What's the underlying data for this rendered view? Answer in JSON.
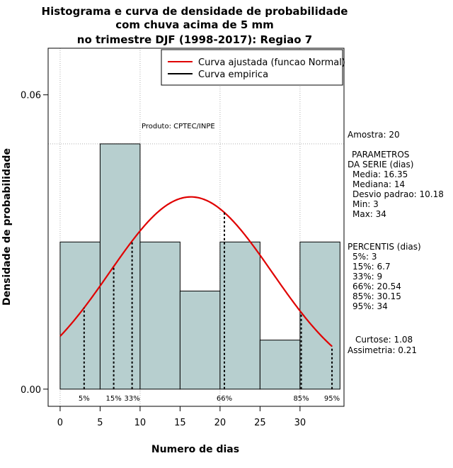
{
  "chart_data": {
    "type": "bar",
    "title_lines": [
      "Histograma e curva de densidade de probabilidade",
      "com chuva acima de 5 mm",
      "no trimestre DJF (1998-2017): Regiao 7"
    ],
    "xlabel": "Numero de dias",
    "ylabel": "Densidade de probabilidade",
    "xlim": [
      -1.5,
      35.5
    ],
    "ylim": [
      -0.0035,
      0.0695
    ],
    "x_ticks": [
      0,
      5,
      10,
      15,
      20,
      25,
      30
    ],
    "y_ticks": [
      0.0,
      0.06
    ],
    "y_tick_labels": [
      "0.00",
      "0.06"
    ],
    "bins": [
      {
        "start": 0,
        "end": 5,
        "density": 0.03
      },
      {
        "start": 5,
        "end": 10,
        "density": 0.05
      },
      {
        "start": 10,
        "end": 15,
        "density": 0.03
      },
      {
        "start": 15,
        "end": 20,
        "density": 0.02
      },
      {
        "start": 20,
        "end": 25,
        "density": 0.03
      },
      {
        "start": 25,
        "end": 30,
        "density": 0.01
      },
      {
        "start": 30,
        "end": 35,
        "density": 0.03
      }
    ],
    "bar_color": "#b7cfcf",
    "fitted_curve": {
      "mean": 16.35,
      "sd": 10.18,
      "x_from": 0,
      "x_to": 34,
      "color": "#e00000"
    },
    "grid_x": [
      0,
      10,
      20,
      30
    ],
    "grid_y": [
      0.05
    ],
    "percentiles": [
      {
        "label": "5%",
        "value": 3
      },
      {
        "label": "15%",
        "value": 6.7
      },
      {
        "label": "33%",
        "value": 9
      },
      {
        "label": "66%",
        "value": 20.54
      },
      {
        "label": "85%",
        "value": 30.15
      },
      {
        "label": "95%",
        "value": 34
      }
    ],
    "legend": {
      "position": "top-right",
      "items": [
        {
          "label": "Curva ajustada (funcao Normal)",
          "color": "#e00000"
        },
        {
          "label": "Curva empirica",
          "color": "#000000"
        }
      ]
    },
    "annotation": "Produto: CPTEC/INPE"
  },
  "sidebar": {
    "sample": "Amostra: 20",
    "params_title_1": "PARAMETROS",
    "params_title_2": "DA SERIE (dias)",
    "media": "Media: 16.35",
    "mediana": "Mediana: 14",
    "desvio": "Desvio padrao: 10.18",
    "min": "Min: 3",
    "max": "Max: 34",
    "percentis_title": "PERCENTIS (dias)",
    "p5": "5%: 3",
    "p15": "15%: 6.7",
    "p33": "33%: 9",
    "p66": "66%: 20.54",
    "p85": "85%: 30.15",
    "p95": "95%: 34",
    "curtose": "Curtose: 1.08",
    "assimetria": "Assimetria: 0.21"
  }
}
